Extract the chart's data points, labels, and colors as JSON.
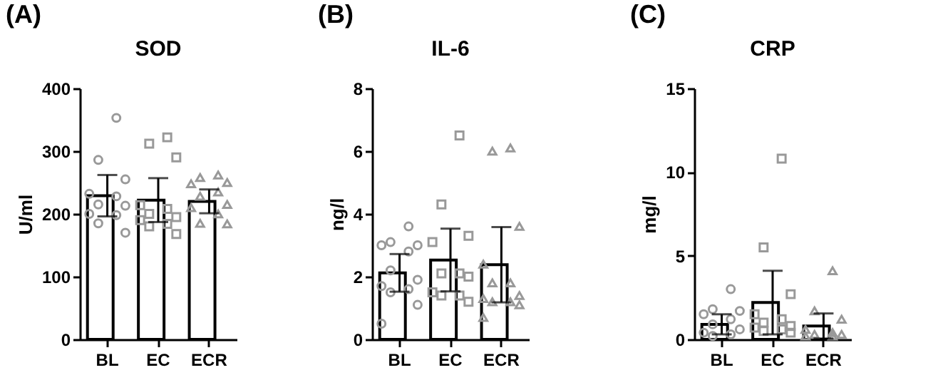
{
  "chart_data": [
    {
      "type": "bar",
      "title": "SOD",
      "ylabel": "U/ml",
      "annotations": [
        "(A)"
      ],
      "categories": [
        "BL",
        "EC",
        "ECR"
      ],
      "ylim": [
        0,
        400
      ],
      "yticks": [
        0,
        100,
        200,
        300,
        400
      ],
      "series": [
        {
          "type": "bar",
          "color": "#ffffff",
          "values": [
            229,
            222,
            220
          ],
          "errors": [
            33,
            35,
            19
          ]
        },
        {
          "type": "scatter",
          "marker": "circle",
          "color": "#999999",
          "x": [
            "BL",
            "BL",
            "BL",
            "BL",
            "BL",
            "BL",
            "BL",
            "BL",
            "BL",
            "BL",
            "BL"
          ],
          "values": [
            353,
            286,
            255,
            232,
            228,
            215,
            213,
            200,
            198,
            185,
            170
          ]
        },
        {
          "type": "scatter",
          "marker": "square",
          "color": "#999999",
          "x": [
            "EC",
            "EC",
            "EC",
            "EC",
            "EC",
            "EC",
            "EC",
            "EC",
            "EC",
            "EC",
            "EC"
          ],
          "values": [
            322,
            312,
            290,
            214,
            208,
            200,
            195,
            190,
            184,
            180,
            168
          ]
        },
        {
          "type": "scatter",
          "marker": "triangle",
          "color": "#999999",
          "x": [
            "ECR",
            "ECR",
            "ECR",
            "ECR",
            "ECR",
            "ECR",
            "ECR",
            "ECR",
            "ECR",
            "ECR",
            "ECR"
          ],
          "values": [
            262,
            258,
            250,
            248,
            235,
            228,
            215,
            210,
            200,
            185,
            184
          ]
        }
      ]
    },
    {
      "type": "bar",
      "title": "IL-6",
      "ylabel": "ng/l",
      "annotations": [
        "(B)"
      ],
      "categories": [
        "BL",
        "EC",
        "ECR"
      ],
      "ylim": [
        0,
        8
      ],
      "yticks": [
        0,
        2,
        4,
        6,
        8
      ],
      "series": [
        {
          "type": "bar",
          "color": "#ffffff",
          "values": [
            2.12,
            2.53,
            2.38
          ],
          "errors": [
            0.6,
            1.0,
            1.2
          ]
        },
        {
          "type": "scatter",
          "marker": "circle",
          "color": "#999999",
          "x": [
            "BL",
            "BL",
            "BL",
            "BL",
            "BL",
            "BL",
            "BL",
            "BL",
            "BL",
            "BL",
            "BL",
            "BL"
          ],
          "values": [
            3.6,
            3.1,
            3.0,
            3.0,
            2.8,
            2.2,
            1.9,
            1.7,
            1.6,
            1.5,
            1.1,
            0.5
          ]
        },
        {
          "type": "scatter",
          "marker": "square",
          "color": "#999999",
          "x": [
            "EC",
            "EC",
            "EC",
            "EC",
            "EC",
            "EC",
            "EC",
            "EC",
            "EC",
            "EC",
            "EC"
          ],
          "values": [
            6.5,
            4.3,
            3.3,
            3.1,
            2.1,
            2.1,
            2.0,
            1.5,
            1.4,
            1.4,
            1.2
          ]
        },
        {
          "type": "scatter",
          "marker": "triangle",
          "color": "#999999",
          "x": [
            "ECR",
            "ECR",
            "ECR",
            "ECR",
            "ECR",
            "ECR",
            "ECR",
            "ECR",
            "ECR",
            "ECR",
            "ECR",
            "ECR"
          ],
          "values": [
            6.1,
            6.0,
            3.6,
            2.4,
            1.8,
            1.8,
            1.4,
            1.3,
            1.2,
            1.2,
            1.1,
            0.7
          ]
        }
      ]
    },
    {
      "type": "bar",
      "title": "CRP",
      "ylabel": "mg/l",
      "annotations": [
        "(C)"
      ],
      "categories": [
        "BL",
        "EC",
        "ECR"
      ],
      "ylim": [
        0,
        15
      ],
      "yticks": [
        0,
        5,
        10,
        15
      ],
      "series": [
        {
          "type": "bar",
          "color": "#ffffff",
          "values": [
            0.9,
            2.2,
            0.8
          ],
          "errors": [
            0.6,
            1.9,
            0.75
          ]
        },
        {
          "type": "scatter",
          "marker": "circle",
          "color": "#999999",
          "x": [
            "BL",
            "BL",
            "BL",
            "BL",
            "BL",
            "BL",
            "BL",
            "BL",
            "BL",
            "BL"
          ],
          "values": [
            3.0,
            1.8,
            1.7,
            1.5,
            1.2,
            0.9,
            0.6,
            0.4,
            0.3,
            0.2
          ]
        },
        {
          "type": "scatter",
          "marker": "square",
          "color": "#999999",
          "x": [
            "EC",
            "EC",
            "EC",
            "EC",
            "EC",
            "EC",
            "EC",
            "EC",
            "EC",
            "EC",
            "EC"
          ],
          "values": [
            10.8,
            5.5,
            2.7,
            1.5,
            1.2,
            1.0,
            0.8,
            0.7,
            0.6,
            0.5,
            0.4
          ]
        },
        {
          "type": "scatter",
          "marker": "triangle",
          "color": "#999999",
          "x": [
            "ECR",
            "ECR",
            "ECR",
            "ECR",
            "ECR",
            "ECR",
            "ECR",
            "ECR",
            "ECR"
          ],
          "values": [
            4.1,
            1.7,
            1.2,
            0.6,
            0.4,
            0.3,
            0.3,
            0.2,
            0.2
          ]
        }
      ]
    }
  ]
}
